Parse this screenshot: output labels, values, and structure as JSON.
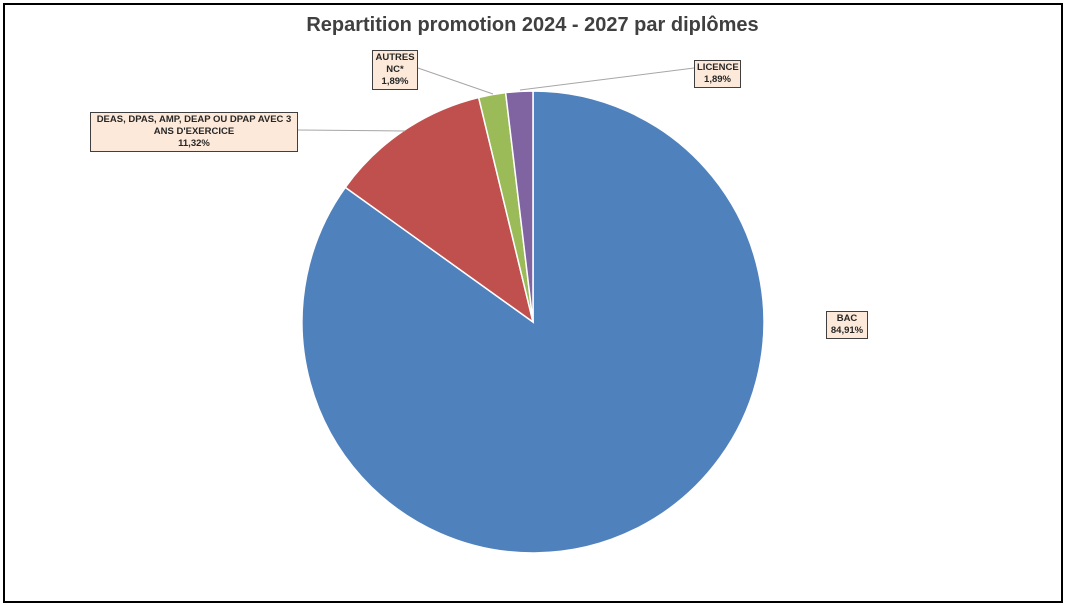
{
  "chart_data": {
    "type": "pie",
    "title": "Repartition promotion 2024 - 2027 par diplômes",
    "categories": [
      "BAC",
      "DEAS, DPAS, AMP, DEAP OU DPAP AVEC 3 ANS D'EXERCICE",
      "AUTRES NC*",
      "LICENCE"
    ],
    "values": [
      84.91,
      11.32,
      1.89,
      1.89
    ],
    "value_labels": [
      "84,91%",
      "11,32%",
      "1,89%",
      "1,89%"
    ],
    "colors": [
      "#4f81bd",
      "#c0504d",
      "#9bbb59",
      "#8064a2"
    ]
  }
}
